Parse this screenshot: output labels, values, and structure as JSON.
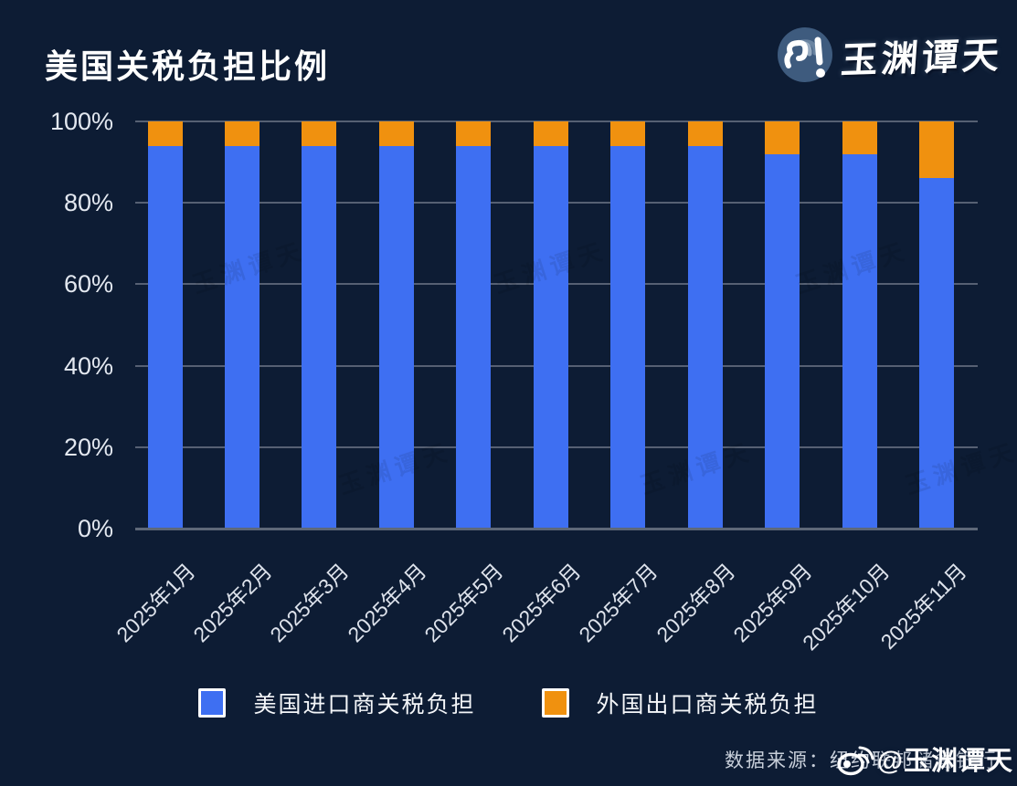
{
  "header": {
    "logo_text": "玉渊谭天"
  },
  "chart_data": {
    "type": "bar",
    "stacked": true,
    "title": "美国关税负担比例",
    "xlabel": "",
    "ylabel": "",
    "ylim": [
      0,
      100
    ],
    "grid": true,
    "legend_position": "bottom",
    "categories": [
      "2025年1月",
      "2025年2月",
      "2025年3月",
      "2025年4月",
      "2025年5月",
      "2025年6月",
      "2025年7月",
      "2025年8月",
      "2025年9月",
      "2025年10月",
      "2025年11月"
    ],
    "series": [
      {
        "name": "美国进口商关税负担",
        "color": "#3E6FF2",
        "values": [
          94,
          94,
          94,
          94,
          94,
          94,
          94,
          94,
          92,
          92,
          86
        ]
      },
      {
        "name": "外国出口商关税负担",
        "color": "#F0910F",
        "values": [
          6,
          6,
          6,
          6,
          6,
          6,
          6,
          6,
          8,
          8,
          14
        ]
      }
    ],
    "y_ticks": [
      {
        "value": 100,
        "label": "100%"
      },
      {
        "value": 80,
        "label": "80%"
      },
      {
        "value": 60,
        "label": "60%"
      },
      {
        "value": 40,
        "label": "40%"
      },
      {
        "value": 20,
        "label": "20%"
      },
      {
        "value": 0,
        "label": "0%"
      }
    ]
  },
  "legend": {
    "items": [
      {
        "label": "美国进口商关税负担",
        "color": "#3E6FF2"
      },
      {
        "label": "外国出口商关税负担",
        "color": "#F0910F"
      }
    ]
  },
  "footer": {
    "source_label": "数据来源：纽约联邦储备银行",
    "watermark": "@玉渊谭天"
  },
  "colors": {
    "background": "#0D1C34",
    "importer_blue": "#3E6FF2",
    "exporter_orange": "#F0910F",
    "gridline": "#566073",
    "axis_text": "#E3E8F0"
  }
}
